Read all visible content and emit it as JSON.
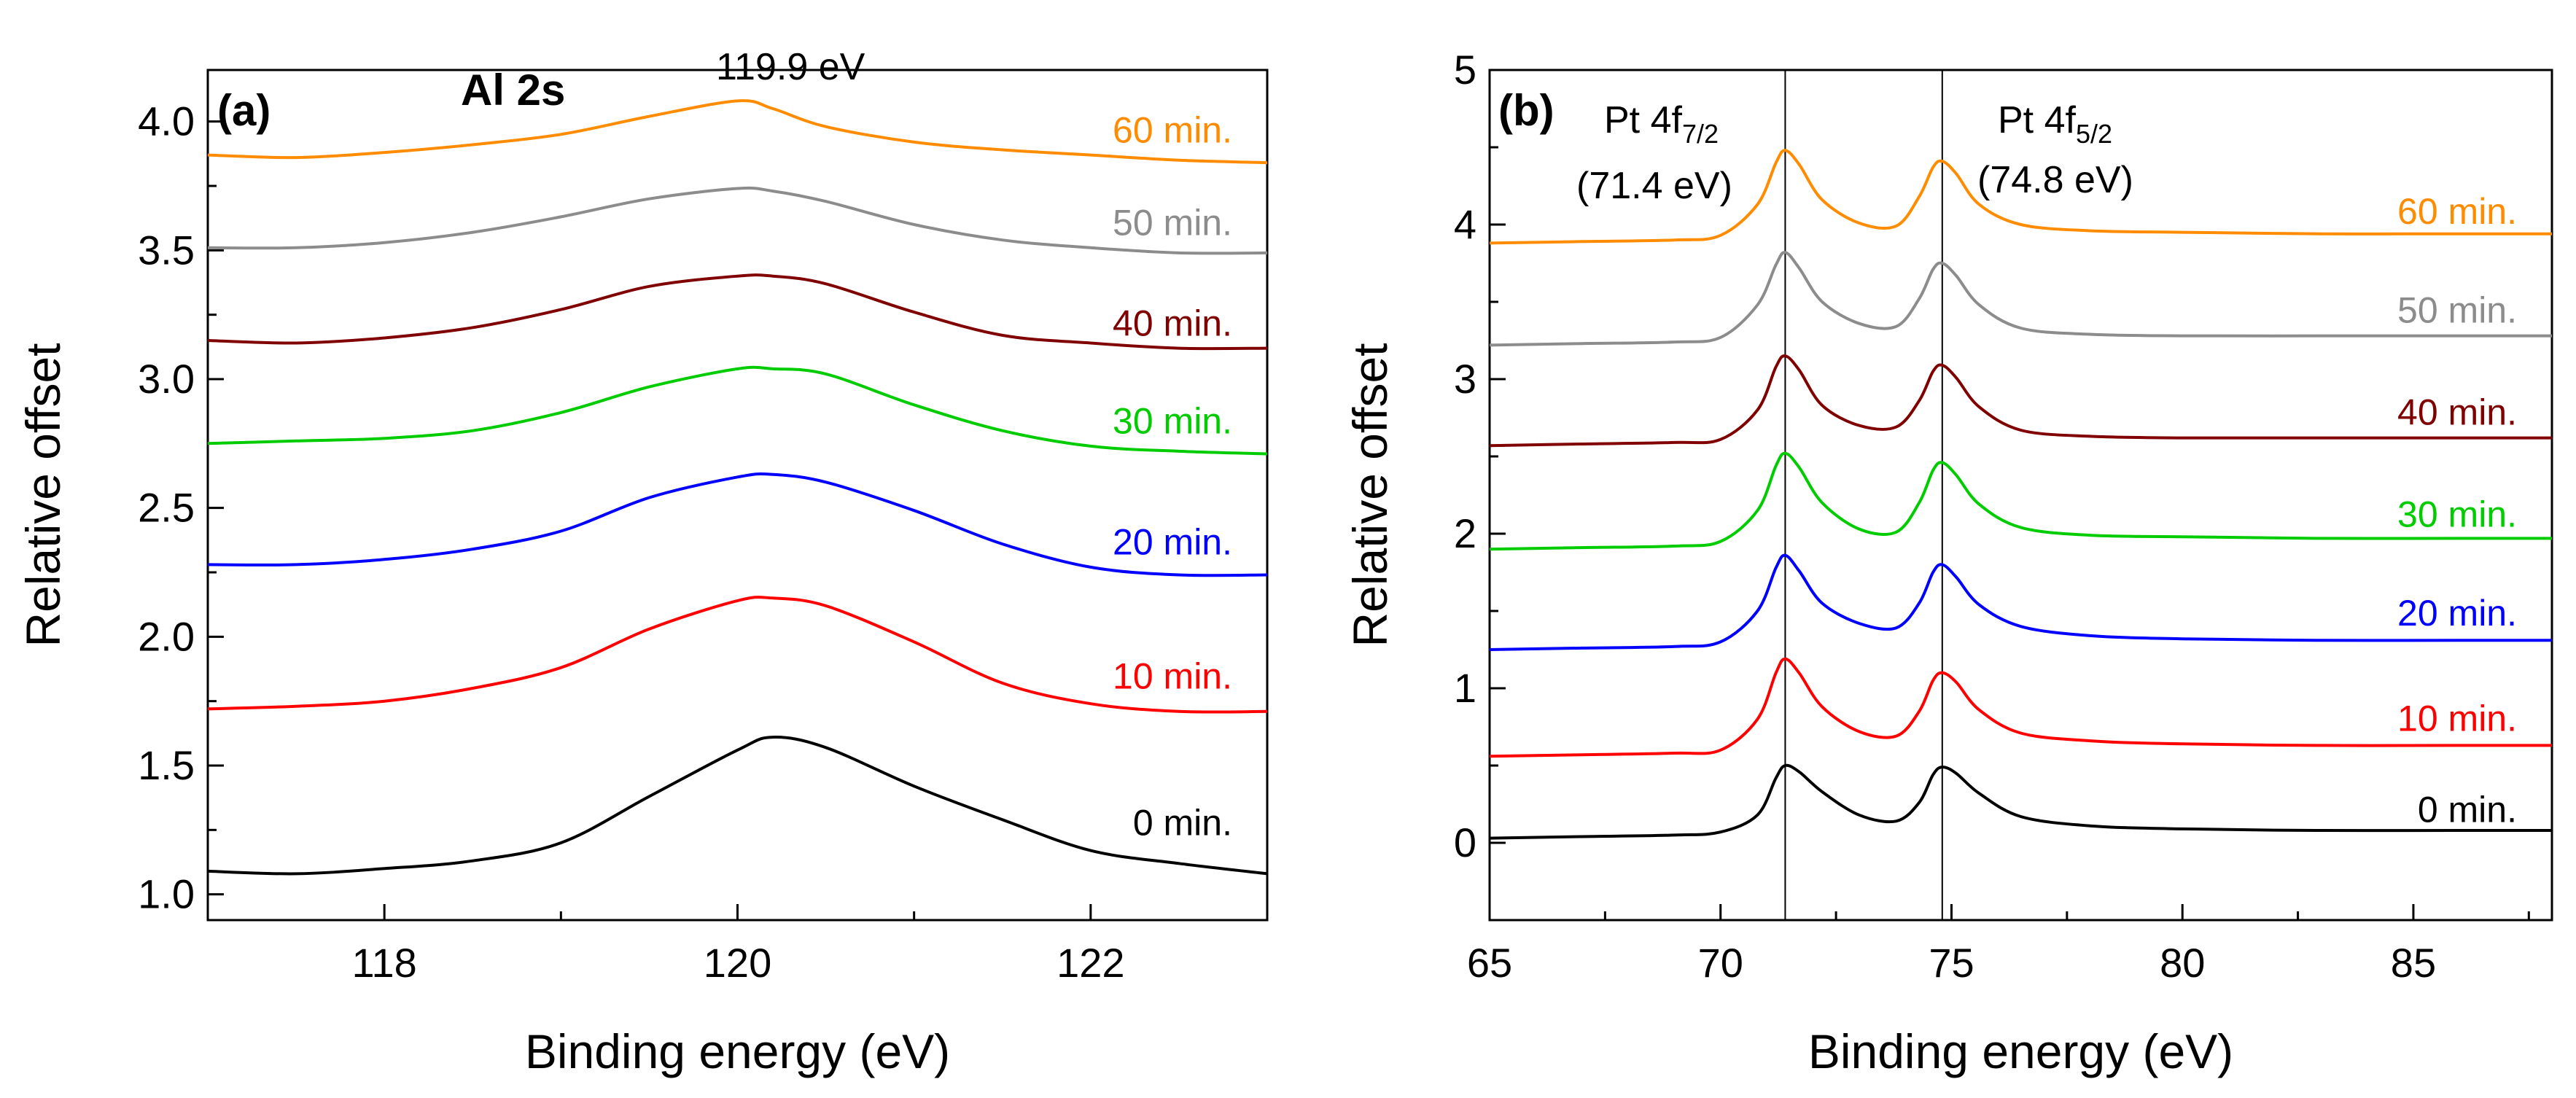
{
  "chart_data": [
    {
      "panel": "a",
      "type": "line",
      "panel_label": "(a)",
      "title": "Al 2s",
      "annotation": "119.9 eV",
      "annotation_x": 120.3,
      "annotation_y": 4.09,
      "xlabel": "Binding energy (eV)",
      "ylabel": "Relative offset",
      "xlim": [
        117.0,
        123.0
      ],
      "ylim": [
        0.9,
        4.2
      ],
      "xticks": [
        118,
        120,
        122
      ],
      "xtick_labels": [
        "118",
        "120",
        "122"
      ],
      "yticks": [
        1.0,
        1.5,
        2.0,
        2.5,
        3.0,
        3.5,
        4.0
      ],
      "ytick_labels": [
        "1.0",
        "1.5",
        "2.0",
        "2.5",
        "3.0",
        "3.5",
        "4.0"
      ],
      "x": [
        117.0,
        117.5,
        118.0,
        118.5,
        119.0,
        119.5,
        120.0,
        120.2,
        120.5,
        121.0,
        121.5,
        122.0,
        122.5,
        123.0
      ],
      "series": [
        {
          "name": "0 min.",
          "color": "#000000",
          "label_y": 1.28,
          "values": [
            1.09,
            1.08,
            1.1,
            1.13,
            1.2,
            1.38,
            1.56,
            1.61,
            1.57,
            1.42,
            1.29,
            1.17,
            1.12,
            1.08
          ]
        },
        {
          "name": "10 min.",
          "color": "#ff0000",
          "label_y": 1.85,
          "values": [
            1.72,
            1.73,
            1.75,
            1.8,
            1.88,
            2.03,
            2.14,
            2.15,
            2.12,
            1.98,
            1.82,
            1.74,
            1.71,
            1.71
          ]
        },
        {
          "name": "20 min.",
          "color": "#0000ff",
          "label_y": 2.37,
          "values": [
            2.28,
            2.28,
            2.3,
            2.34,
            2.41,
            2.54,
            2.62,
            2.63,
            2.6,
            2.49,
            2.36,
            2.27,
            2.24,
            2.24
          ]
        },
        {
          "name": "30 min.",
          "color": "#00cc00",
          "label_y": 2.84,
          "values": [
            2.75,
            2.76,
            2.77,
            2.8,
            2.87,
            2.97,
            3.04,
            3.04,
            3.02,
            2.9,
            2.8,
            2.74,
            2.72,
            2.71
          ]
        },
        {
          "name": "40 min.",
          "color": "#800000",
          "label_y": 3.22,
          "values": [
            3.15,
            3.14,
            3.16,
            3.2,
            3.27,
            3.36,
            3.4,
            3.4,
            3.37,
            3.26,
            3.17,
            3.14,
            3.12,
            3.12
          ]
        },
        {
          "name": "50 min.",
          "color": "#8c8c8c",
          "label_y": 3.61,
          "values": [
            3.51,
            3.51,
            3.53,
            3.57,
            3.63,
            3.7,
            3.74,
            3.73,
            3.69,
            3.6,
            3.54,
            3.51,
            3.49,
            3.49
          ]
        },
        {
          "name": "60 min.",
          "color": "#ff8c00",
          "label_y": 3.97,
          "values": [
            3.87,
            3.86,
            3.88,
            3.91,
            3.95,
            4.02,
            4.08,
            4.05,
            3.98,
            3.92,
            3.89,
            3.87,
            3.85,
            3.84
          ]
        }
      ]
    },
    {
      "panel": "b",
      "type": "line",
      "panel_label": "(b)",
      "peak_labels": [
        {
          "prefix": "Pt 4f",
          "subscript": "7/2",
          "energy": "(71.4 eV)",
          "x": 71.4
        },
        {
          "prefix": "Pt 4f",
          "subscript": "5/2",
          "energy": "(74.8 eV)",
          "x": 74.8
        }
      ],
      "xlabel": "Binding energy (eV)",
      "ylabel": "Relative offset",
      "xlim": [
        65.0,
        88.0
      ],
      "ylim": [
        -0.5,
        5.0
      ],
      "xticks": [
        65,
        70,
        75,
        80,
        85
      ],
      "xtick_labels": [
        "65",
        "70",
        "75",
        "80",
        "85"
      ],
      "yticks": [
        0,
        1,
        2,
        3,
        4,
        5
      ],
      "ytick_labels": [
        "0",
        "1",
        "2",
        "3",
        "4",
        "5"
      ],
      "x": [
        65.0,
        67.0,
        69.0,
        70.0,
        70.8,
        71.2,
        71.4,
        71.7,
        72.2,
        73.0,
        73.8,
        74.3,
        74.6,
        74.8,
        75.1,
        75.6,
        76.5,
        78.0,
        80.0,
        83.0,
        86.0,
        88.0
      ],
      "series": [
        {
          "name": "0 min.",
          "color": "#000000",
          "label_y": 0.22,
          "values": [
            0.03,
            0.04,
            0.05,
            0.07,
            0.18,
            0.42,
            0.5,
            0.46,
            0.33,
            0.18,
            0.14,
            0.26,
            0.44,
            0.49,
            0.45,
            0.32,
            0.17,
            0.11,
            0.09,
            0.08,
            0.08,
            0.08
          ]
        },
        {
          "name": "10 min.",
          "color": "#ff0000",
          "label_y": 0.81,
          "values": [
            0.56,
            0.57,
            0.58,
            0.6,
            0.8,
            1.1,
            1.19,
            1.1,
            0.88,
            0.72,
            0.69,
            0.85,
            1.05,
            1.1,
            1.04,
            0.86,
            0.71,
            0.66,
            0.64,
            0.63,
            0.63,
            0.63
          ]
        },
        {
          "name": "20 min.",
          "color": "#0000ff",
          "label_y": 1.49,
          "values": [
            1.25,
            1.26,
            1.27,
            1.3,
            1.5,
            1.78,
            1.86,
            1.76,
            1.55,
            1.42,
            1.39,
            1.55,
            1.75,
            1.8,
            1.72,
            1.54,
            1.4,
            1.34,
            1.32,
            1.31,
            1.31,
            1.31
          ]
        },
        {
          "name": "30 min.",
          "color": "#00cc00",
          "label_y": 2.13,
          "values": [
            1.9,
            1.91,
            1.92,
            1.95,
            2.15,
            2.44,
            2.52,
            2.43,
            2.2,
            2.03,
            2.01,
            2.2,
            2.41,
            2.46,
            2.38,
            2.19,
            2.04,
            1.99,
            1.98,
            1.97,
            1.97,
            1.97
          ]
        },
        {
          "name": "40 min.",
          "color": "#800000",
          "label_y": 2.79,
          "values": [
            2.57,
            2.58,
            2.59,
            2.61,
            2.8,
            3.08,
            3.15,
            3.06,
            2.83,
            2.7,
            2.69,
            2.86,
            3.05,
            3.09,
            3.01,
            2.82,
            2.67,
            2.63,
            2.62,
            2.62,
            2.62,
            2.62
          ]
        },
        {
          "name": "50 min.",
          "color": "#8c8c8c",
          "label_y": 3.45,
          "values": [
            3.22,
            3.23,
            3.24,
            3.27,
            3.48,
            3.74,
            3.82,
            3.72,
            3.5,
            3.36,
            3.34,
            3.52,
            3.71,
            3.75,
            3.67,
            3.48,
            3.33,
            3.29,
            3.28,
            3.28,
            3.28,
            3.28
          ]
        },
        {
          "name": "60 min.",
          "color": "#ff8c00",
          "label_y": 4.09,
          "values": [
            3.88,
            3.89,
            3.9,
            3.93,
            4.13,
            4.4,
            4.48,
            4.39,
            4.16,
            4.01,
            3.99,
            4.18,
            4.37,
            4.41,
            4.33,
            4.13,
            4.0,
            3.96,
            3.95,
            3.94,
            3.94,
            3.94
          ]
        }
      ]
    }
  ]
}
